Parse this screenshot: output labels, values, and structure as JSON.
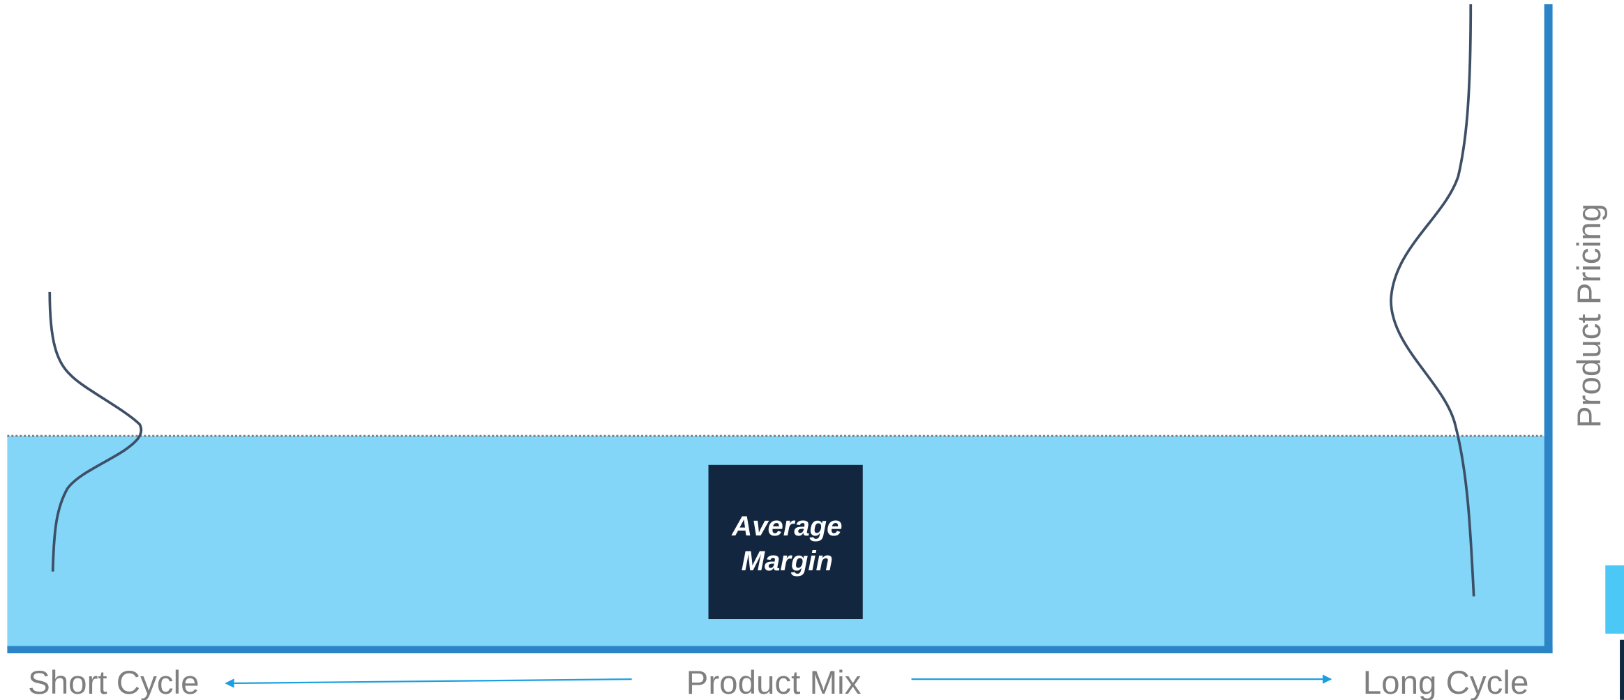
{
  "box": {
    "lines": [
      "Average",
      "Margin"
    ]
  },
  "y_axis_label": "Product Pricing",
  "x_axis": {
    "left": "Short Cycle",
    "center": "Product Mix",
    "right": "Long Cycle"
  }
}
